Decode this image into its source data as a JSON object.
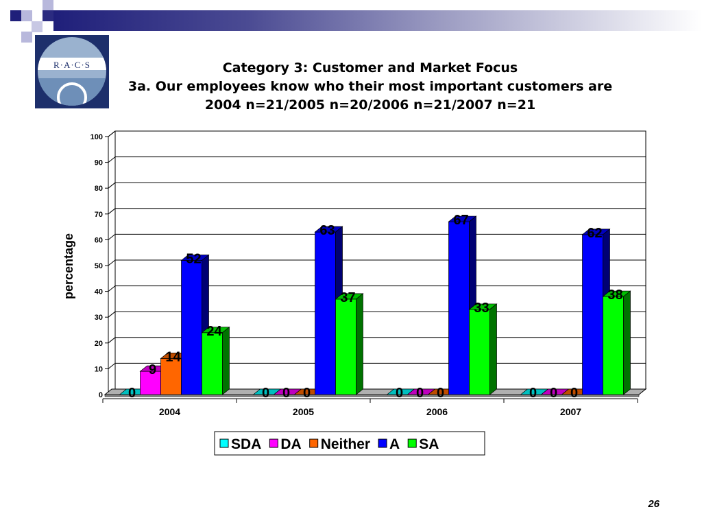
{
  "slide": {
    "title_lines": [
      "Category 3: Customer and Market Focus",
      "3a. Our employees know who their most important customers are",
      "2004 n=21/2005 n=20/2006 n=21/2007 n=21"
    ],
    "logo_text": "R·A·C·S",
    "page_number": "26"
  },
  "colors": {
    "header_band": "#1f1f7a",
    "SDA": "#00ffff",
    "DA": "#ff00ff",
    "Neither": "#ff6600",
    "A": "#0000ff",
    "SA": "#00ff00"
  },
  "chart_data": {
    "type": "bar",
    "categories": [
      "2004",
      "2005",
      "2006",
      "2007"
    ],
    "series": [
      {
        "name": "SDA",
        "values": [
          0,
          0,
          0,
          0
        ]
      },
      {
        "name": "DA",
        "values": [
          9,
          0,
          0,
          0
        ]
      },
      {
        "name": "Neither",
        "values": [
          14,
          0,
          0,
          0
        ]
      },
      {
        "name": "A",
        "values": [
          52,
          63,
          67,
          62
        ]
      },
      {
        "name": "SA",
        "values": [
          24,
          37,
          33,
          38
        ]
      }
    ],
    "data_labels": [
      {
        "category": "2004",
        "labels": [
          "0",
          "9",
          "14",
          "52",
          "24"
        ]
      },
      {
        "category": "2005",
        "labels": [
          "0",
          "0",
          "0",
          "63",
          "37"
        ]
      },
      {
        "category": "2006",
        "labels": [
          "0",
          "0",
          "0",
          "67",
          "33"
        ]
      },
      {
        "category": "2007",
        "labels": [
          "0",
          "0",
          "0",
          "62",
          "38"
        ]
      }
    ],
    "ylabel": "percentage",
    "xlabel": "",
    "ylim": [
      0,
      100
    ],
    "yticks": [
      "0",
      "10",
      "20",
      "30",
      "40",
      "50",
      "60",
      "70",
      "80",
      "90",
      "100"
    ],
    "grid": true,
    "legend_position": "bottom",
    "style": "3d-clustered-column"
  }
}
